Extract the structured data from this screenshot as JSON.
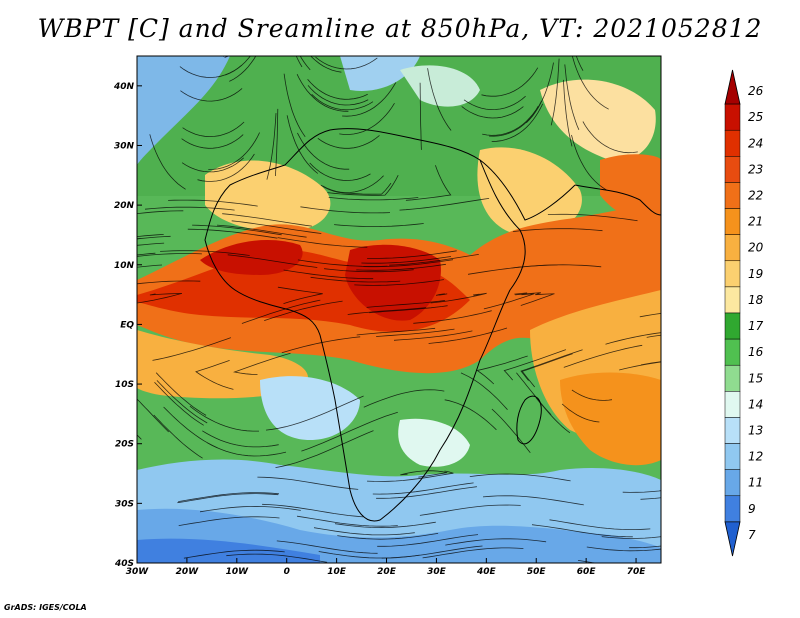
{
  "title": "WBPT [C] and Sreamline at 850hPa, VT: 2021052812",
  "credit": "GrADS: IGES/COLA",
  "map": {
    "lon_range": [
      -30,
      75
    ],
    "lat_range": [
      -40,
      45
    ],
    "lon_ticks": [
      {
        "lon": -30,
        "label": "30W"
      },
      {
        "lon": -20,
        "label": "20W"
      },
      {
        "lon": -10,
        "label": "10W"
      },
      {
        "lon": 0,
        "label": "0"
      },
      {
        "lon": 10,
        "label": "10E"
      },
      {
        "lon": 20,
        "label": "20E"
      },
      {
        "lon": 30,
        "label": "30E"
      },
      {
        "lon": 40,
        "label": "40E"
      },
      {
        "lon": 50,
        "label": "50E"
      },
      {
        "lon": 60,
        "label": "60E"
      },
      {
        "lon": 70,
        "label": "70E"
      }
    ],
    "lat_ticks": [
      {
        "lat": 40,
        "label": "40N"
      },
      {
        "lat": 30,
        "label": "30N"
      },
      {
        "lat": 20,
        "label": "20N"
      },
      {
        "lat": 10,
        "label": "10N"
      },
      {
        "lat": 0,
        "label": "EQ"
      },
      {
        "lat": -10,
        "label": "10S"
      },
      {
        "lat": -20,
        "label": "20S"
      },
      {
        "lat": -30,
        "label": "30S"
      },
      {
        "lat": -40,
        "label": "40S"
      }
    ]
  },
  "colorbar": {
    "labels": [
      "26",
      "25",
      "24",
      "23",
      "22",
      "21",
      "20",
      "19",
      "18",
      "17",
      "16",
      "15",
      "14",
      "13",
      "12",
      "11",
      "9",
      "7"
    ],
    "colors": [
      "#a50000",
      "#c81000",
      "#e03000",
      "#e84c10",
      "#f07018",
      "#f5921c",
      "#f8b040",
      "#fbd070",
      "#fce8a0",
      "#30a830",
      "#50c050",
      "#90dc90",
      "#e0f8f0",
      "#b8e0f8",
      "#90c8f0",
      "#68a8e8",
      "#4080e0",
      "#2060d0"
    ]
  }
}
